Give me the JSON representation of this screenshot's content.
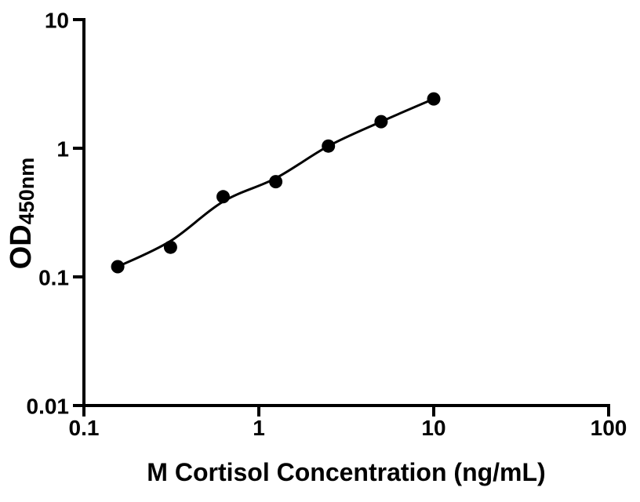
{
  "figure": {
    "background_color": "#ffffff",
    "ink_color": "#000000"
  },
  "chart_data": {
    "type": "scatter",
    "title": "",
    "xlabel": "M Cortisol Concentration (ng/mL)",
    "ylabel": "OD450nm",
    "ylabel_main": "OD",
    "ylabel_sub": "450nm",
    "x_scale": "log",
    "y_scale": "log",
    "xlim": [
      0.1,
      100
    ],
    "ylim": [
      0.01,
      10
    ],
    "grid": false,
    "legend": "none",
    "x_ticks": [
      {
        "value": 0.1,
        "label": "0.1"
      },
      {
        "value": 1,
        "label": "1"
      },
      {
        "value": 10,
        "label": "10"
      },
      {
        "value": 100,
        "label": "100"
      }
    ],
    "y_ticks": [
      {
        "value": 0.01,
        "label": "0.01"
      },
      {
        "value": 0.1,
        "label": "0.1"
      },
      {
        "value": 1,
        "label": "1"
      },
      {
        "value": 10,
        "label": "10"
      }
    ],
    "series": [
      {
        "name": "cortisol-standard-points",
        "marker": "filled-circle",
        "color": "#000000",
        "points": [
          {
            "x": 0.156,
            "y": 0.12
          },
          {
            "x": 0.3125,
            "y": 0.17
          },
          {
            "x": 0.625,
            "y": 0.42
          },
          {
            "x": 1.25,
            "y": 0.55
          },
          {
            "x": 2.5,
            "y": 1.04
          },
          {
            "x": 5,
            "y": 1.61
          },
          {
            "x": 10,
            "y": 2.42
          }
        ]
      }
    ],
    "fit_curve": {
      "name": "standard-curve-fit-line",
      "color": "#000000",
      "points": [
        {
          "x": 0.156,
          "y": 0.12
        },
        {
          "x": 0.3125,
          "y": 0.19
        },
        {
          "x": 0.625,
          "y": 0.385
        },
        {
          "x": 1.25,
          "y": 0.585
        },
        {
          "x": 2.5,
          "y": 1.04
        },
        {
          "x": 5,
          "y": 1.61
        },
        {
          "x": 10,
          "y": 2.42
        }
      ]
    }
  }
}
